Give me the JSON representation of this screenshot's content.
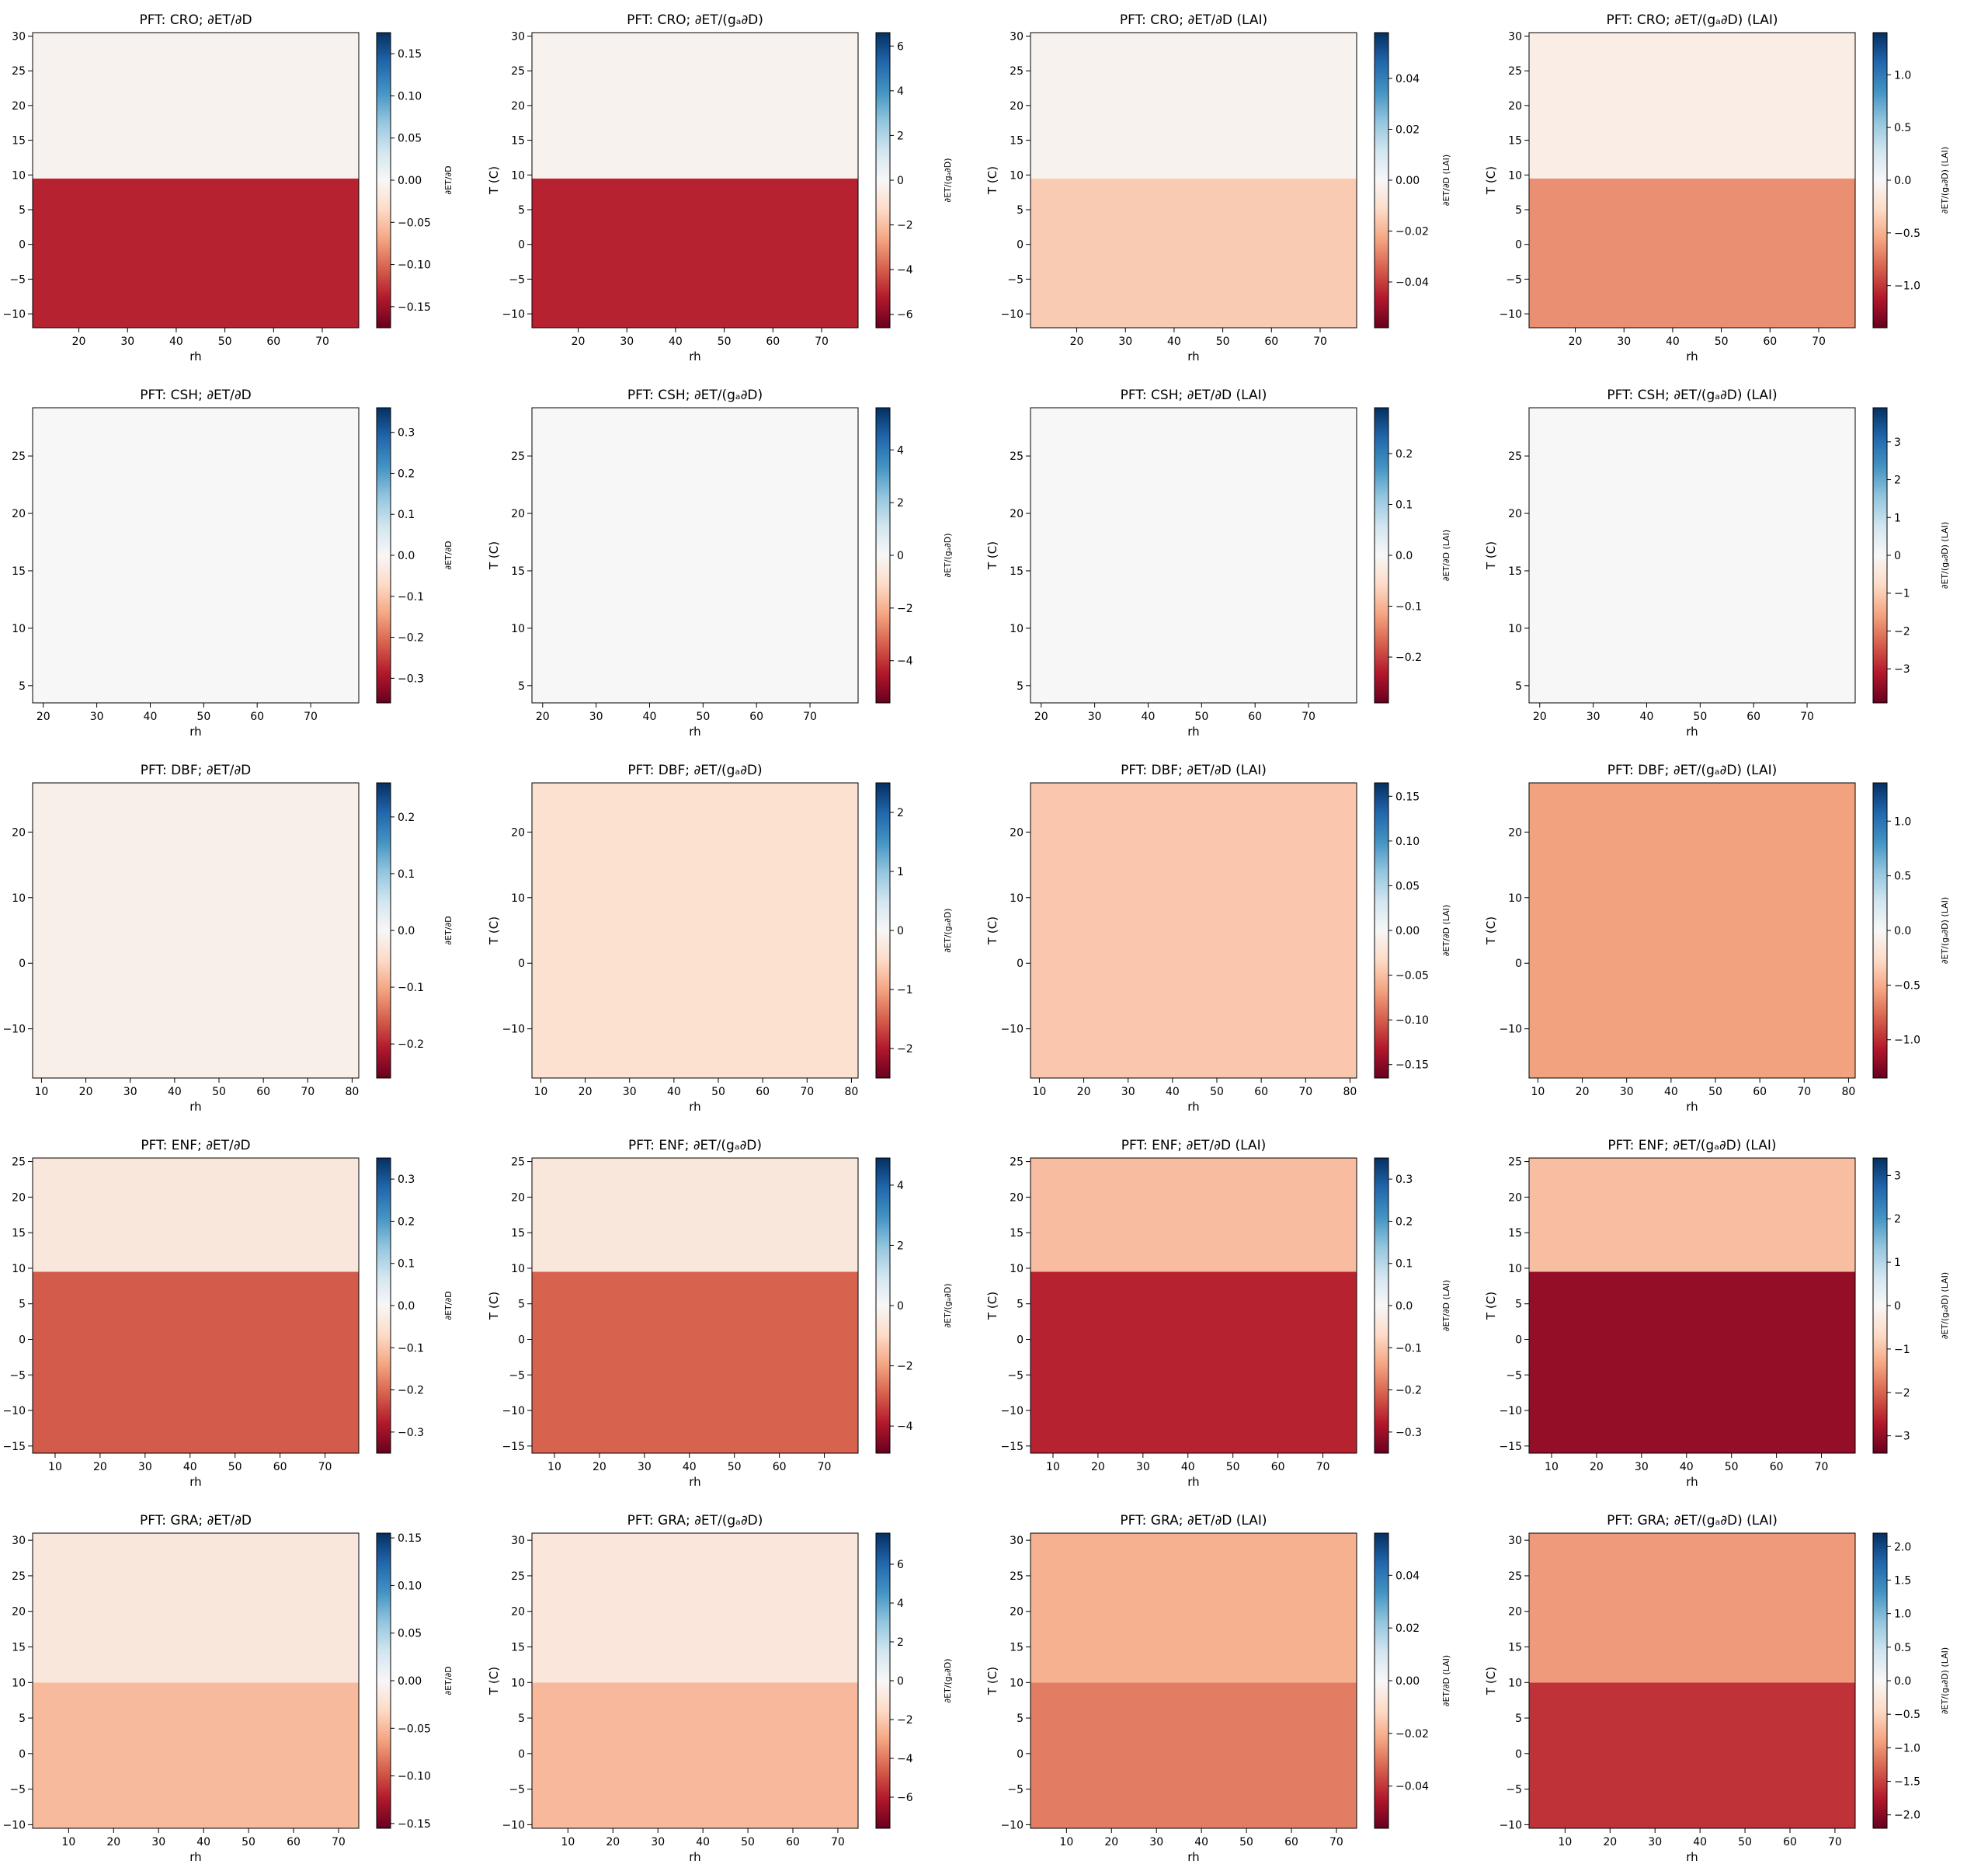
{
  "figure": {
    "xlabel": "rh",
    "ylabel": "T (C)",
    "colormap": [
      "#67001f",
      "#b2182b",
      "#d6604d",
      "#f4a582",
      "#fddbc7",
      "#f7f7f7",
      "#d1e5f0",
      "#92c5de",
      "#4393c3",
      "#2166ac",
      "#053061"
    ],
    "column_titles": [
      "∂ET/∂D",
      "∂ET/(gₐ∂D)",
      "∂ET/∂D (LAI)",
      "∂ET/(gₐ∂D) (LAI)"
    ],
    "colorbar_labels": [
      "∂ET/∂D",
      "∂ET/(gₐ∂D)",
      "∂ET/∂D (LAI)",
      "∂ET/(gₐ∂D) (LAI)"
    ]
  },
  "chart_data": [
    {
      "type": "heatmap",
      "title": "PFT: CRO; ∂ET/∂D",
      "xlabel": "rh",
      "ylabel": "T (C)",
      "xlim": [
        10.5,
        77.5
      ],
      "ylim": [
        -12,
        30.5
      ],
      "xticks": [
        20,
        30,
        40,
        50,
        60,
        70
      ],
      "yticks": [
        -10,
        -5,
        0,
        5,
        10,
        15,
        20,
        25,
        30
      ],
      "colorbar_label": "∂ET/∂D",
      "clim": [
        -0.175,
        0.175
      ],
      "cticks": [
        -0.15,
        -0.1,
        -0.05,
        0.0,
        0.05,
        0.1,
        0.15
      ],
      "cdec": 2,
      "bands": [
        {
          "t_from": -12,
          "t_to": 9.5,
          "value": -0.135
        },
        {
          "t_from": 9.5,
          "t_to": 30.5,
          "value": -0.006
        }
      ]
    },
    {
      "type": "heatmap",
      "title": "PFT: CRO; ∂ET/(gₐ∂D)",
      "xlabel": "rh",
      "ylabel": "T (C)",
      "xlim": [
        10.5,
        77.5
      ],
      "ylim": [
        -12,
        30.5
      ],
      "xticks": [
        20,
        30,
        40,
        50,
        60,
        70
      ],
      "yticks": [
        -10,
        -5,
        0,
        5,
        10,
        15,
        20,
        25,
        30
      ],
      "colorbar_label": "∂ET/(gₐ∂D)",
      "clim": [
        -6.6,
        6.6
      ],
      "cticks": [
        -6,
        -4,
        -2,
        0,
        2,
        4,
        6
      ],
      "cdec": 0,
      "bands": [
        {
          "t_from": -12,
          "t_to": 9.5,
          "value": -5.1
        },
        {
          "t_from": 9.5,
          "t_to": 30.5,
          "value": -0.25
        }
      ]
    },
    {
      "type": "heatmap",
      "title": "PFT: CRO; ∂ET/∂D (LAI)",
      "xlabel": "rh",
      "ylabel": "T (C)",
      "xlim": [
        10.5,
        77.5
      ],
      "ylim": [
        -12,
        30.5
      ],
      "xticks": [
        20,
        30,
        40,
        50,
        60,
        70
      ],
      "yticks": [
        -10,
        -5,
        0,
        5,
        10,
        15,
        20,
        25,
        30
      ],
      "colorbar_label": "∂ET/∂D (LAI)",
      "clim": [
        -0.058,
        0.058
      ],
      "cticks": [
        -0.04,
        -0.02,
        0.0,
        0.02,
        0.04
      ],
      "cdec": 2,
      "bands": [
        {
          "t_from": -12,
          "t_to": 9.5,
          "value": -0.015
        },
        {
          "t_from": 9.5,
          "t_to": 30.5,
          "value": -0.002
        }
      ]
    },
    {
      "type": "heatmap",
      "title": "PFT: CRO; ∂ET/(gₐ∂D) (LAI)",
      "xlabel": "rh",
      "ylabel": "T (C)",
      "xlim": [
        10.5,
        77.5
      ],
      "ylim": [
        -12,
        30.5
      ],
      "xticks": [
        20,
        30,
        40,
        50,
        60,
        70
      ],
      "yticks": [
        -10,
        -5,
        0,
        5,
        10,
        15,
        20,
        25,
        30
      ],
      "colorbar_label": "∂ET/(gₐ∂D) (LAI)",
      "clim": [
        -1.4,
        1.4
      ],
      "cticks": [
        -1.0,
        -0.5,
        0.0,
        0.5,
        1.0
      ],
      "cdec": 1,
      "bands": [
        {
          "t_from": -12,
          "t_to": 9.5,
          "value": -0.65
        },
        {
          "t_from": 9.5,
          "t_to": 30.5,
          "value": -0.1
        }
      ]
    },
    {
      "type": "heatmap",
      "title": "PFT: CSH; ∂ET/∂D",
      "xlabel": "rh",
      "ylabel": "T (C)",
      "xlim": [
        18,
        79
      ],
      "ylim": [
        3.5,
        29.2
      ],
      "xticks": [
        20,
        30,
        40,
        50,
        60,
        70
      ],
      "yticks": [
        5,
        10,
        15,
        20,
        25
      ],
      "colorbar_label": "∂ET/∂D",
      "clim": [
        -0.36,
        0.36
      ],
      "cticks": [
        -0.3,
        -0.2,
        -0.1,
        0.0,
        0.1,
        0.2,
        0.3
      ],
      "cdec": 1,
      "bands": [
        {
          "t_from": 3.5,
          "t_to": 29.2,
          "value": 0
        }
      ]
    },
    {
      "type": "heatmap",
      "title": "PFT: CSH; ∂ET/(gₐ∂D)",
      "xlabel": "rh",
      "ylabel": "T (C)",
      "xlim": [
        18,
        79
      ],
      "ylim": [
        3.5,
        29.2
      ],
      "xticks": [
        20,
        30,
        40,
        50,
        60,
        70
      ],
      "yticks": [
        5,
        10,
        15,
        20,
        25
      ],
      "colorbar_label": "∂ET/(gₐ∂D)",
      "clim": [
        -5.6,
        5.6
      ],
      "cticks": [
        -4,
        -2,
        0,
        2,
        4
      ],
      "cdec": 0,
      "bands": [
        {
          "t_from": 3.5,
          "t_to": 29.2,
          "value": 0
        }
      ]
    },
    {
      "type": "heatmap",
      "title": "PFT: CSH; ∂ET/∂D (LAI)",
      "xlabel": "rh",
      "ylabel": "T (C)",
      "xlim": [
        18,
        79
      ],
      "ylim": [
        3.5,
        29.2
      ],
      "xticks": [
        20,
        30,
        40,
        50,
        60,
        70
      ],
      "yticks": [
        5,
        10,
        15,
        20,
        25
      ],
      "colorbar_label": "∂ET/∂D (LAI)",
      "clim": [
        -0.29,
        0.29
      ],
      "cticks": [
        -0.2,
        -0.1,
        0.0,
        0.1,
        0.2
      ],
      "cdec": 1,
      "bands": [
        {
          "t_from": 3.5,
          "t_to": 29.2,
          "value": 0
        }
      ]
    },
    {
      "type": "heatmap",
      "title": "PFT: CSH; ∂ET/(gₐ∂D) (LAI)",
      "xlabel": "rh",
      "ylabel": "T (C)",
      "xlim": [
        18,
        79
      ],
      "ylim": [
        3.5,
        29.2
      ],
      "xticks": [
        20,
        30,
        40,
        50,
        60,
        70
      ],
      "yticks": [
        5,
        10,
        15,
        20,
        25
      ],
      "colorbar_label": "∂ET/(gₐ∂D) (LAI)",
      "clim": [
        -3.9,
        3.9
      ],
      "cticks": [
        -3,
        -2,
        -1,
        0,
        1,
        2,
        3
      ],
      "cdec": 0,
      "bands": [
        {
          "t_from": 3.5,
          "t_to": 29.2,
          "value": 0
        }
      ]
    },
    {
      "type": "heatmap",
      "title": "PFT: DBF; ∂ET/∂D",
      "xlabel": "rh",
      "ylabel": "T (C)",
      "xlim": [
        8,
        81.5
      ],
      "ylim": [
        -17.5,
        27.5
      ],
      "xticks": [
        10,
        20,
        30,
        40,
        50,
        60,
        70,
        80
      ],
      "yticks": [
        -10,
        0,
        10,
        20
      ],
      "colorbar_label": "∂ET/∂D",
      "clim": [
        -0.26,
        0.26
      ],
      "cticks": [
        -0.2,
        -0.1,
        0.0,
        0.1,
        0.2
      ],
      "cdec": 1,
      "bands": [
        {
          "t_from": -17.5,
          "t_to": 27.5,
          "value": -0.015
        }
      ]
    },
    {
      "type": "heatmap",
      "title": "PFT: DBF; ∂ET/(gₐ∂D)",
      "xlabel": "rh",
      "ylabel": "T (C)",
      "xlim": [
        8,
        81.5
      ],
      "ylim": [
        -17.5,
        27.5
      ],
      "xticks": [
        10,
        20,
        30,
        40,
        50,
        60,
        70,
        80
      ],
      "yticks": [
        -10,
        0,
        10,
        20
      ],
      "colorbar_label": "∂ET/(gₐ∂D)",
      "clim": [
        -2.5,
        2.5
      ],
      "cticks": [
        -2,
        -1,
        0,
        1,
        2
      ],
      "cdec": 0,
      "bands": [
        {
          "t_from": -17.5,
          "t_to": 27.5,
          "value": -0.4
        }
      ]
    },
    {
      "type": "heatmap",
      "title": "PFT: DBF; ∂ET/∂D (LAI)",
      "xlabel": "rh",
      "ylabel": "T (C)",
      "xlim": [
        8,
        81.5
      ],
      "ylim": [
        -17.5,
        27.5
      ],
      "xticks": [
        10,
        20,
        30,
        40,
        50,
        60,
        70,
        80
      ],
      "yticks": [
        -10,
        0,
        10,
        20
      ],
      "colorbar_label": "∂ET/∂D (LAI)",
      "clim": [
        -0.165,
        0.165
      ],
      "cticks": [
        -0.15,
        -0.1,
        -0.05,
        0.0,
        0.05,
        0.1,
        0.15
      ],
      "cdec": 2,
      "bands": [
        {
          "t_from": -17.5,
          "t_to": 27.5,
          "value": -0.045
        }
      ]
    },
    {
      "type": "heatmap",
      "title": "PFT: DBF; ∂ET/(gₐ∂D) (LAI)",
      "xlabel": "rh",
      "ylabel": "T (C)",
      "xlim": [
        8,
        81.5
      ],
      "ylim": [
        -17.5,
        27.5
      ],
      "xticks": [
        10,
        20,
        30,
        40,
        50,
        60,
        70,
        80
      ],
      "yticks": [
        -10,
        0,
        10,
        20
      ],
      "colorbar_label": "∂ET/(gₐ∂D) (LAI)",
      "clim": [
        -1.35,
        1.35
      ],
      "cticks": [
        -1.0,
        -0.5,
        0.0,
        0.5,
        1.0
      ],
      "cdec": 1,
      "bands": [
        {
          "t_from": -17.5,
          "t_to": 27.5,
          "value": -0.55
        }
      ]
    },
    {
      "type": "heatmap",
      "title": "PFT: ENF; ∂ET/∂D",
      "xlabel": "rh",
      "ylabel": "T (C)",
      "xlim": [
        5,
        77.5
      ],
      "ylim": [
        -16,
        25.5
      ],
      "xticks": [
        10,
        20,
        30,
        40,
        50,
        60,
        70
      ],
      "yticks": [
        -15,
        -10,
        -5,
        0,
        5,
        10,
        15,
        20,
        25
      ],
      "colorbar_label": "∂ET/∂D",
      "clim": [
        -0.35,
        0.35
      ],
      "cticks": [
        -0.3,
        -0.2,
        -0.1,
        0.0,
        0.1,
        0.2,
        0.3
      ],
      "cdec": 1,
      "bands": [
        {
          "t_from": -16,
          "t_to": 9.5,
          "value": -0.215
        },
        {
          "t_from": 9.5,
          "t_to": 25.5,
          "value": -0.04
        }
      ]
    },
    {
      "type": "heatmap",
      "title": "PFT: ENF; ∂ET/(gₐ∂D)",
      "xlabel": "rh",
      "ylabel": "T (C)",
      "xlim": [
        5,
        77.5
      ],
      "ylim": [
        -16,
        25.5
      ],
      "xticks": [
        10,
        20,
        30,
        40,
        50,
        60,
        70
      ],
      "yticks": [
        -15,
        -10,
        -5,
        0,
        5,
        10,
        15,
        20,
        25
      ],
      "colorbar_label": "∂ET/(gₐ∂D)",
      "clim": [
        -4.9,
        4.9
      ],
      "cticks": [
        -4,
        -2,
        0,
        2,
        4
      ],
      "cdec": 0,
      "bands": [
        {
          "t_from": -16,
          "t_to": 9.5,
          "value": -2.9
        },
        {
          "t_from": 9.5,
          "t_to": 25.5,
          "value": -0.55
        }
      ]
    },
    {
      "type": "heatmap",
      "title": "PFT: ENF; ∂ET/∂D (LAI)",
      "xlabel": "rh",
      "ylabel": "T (C)",
      "xlim": [
        5,
        77.5
      ],
      "ylim": [
        -16,
        25.5
      ],
      "xticks": [
        10,
        20,
        30,
        40,
        50,
        60,
        70
      ],
      "yticks": [
        -15,
        -10,
        -5,
        0,
        5,
        10,
        15,
        20,
        25
      ],
      "colorbar_label": "∂ET/∂D (LAI)",
      "clim": [
        -0.35,
        0.35
      ],
      "cticks": [
        -0.3,
        -0.2,
        -0.1,
        0.0,
        0.1,
        0.2,
        0.3
      ],
      "cdec": 1,
      "bands": [
        {
          "t_from": -16,
          "t_to": 9.5,
          "value": -0.27
        },
        {
          "t_from": 9.5,
          "t_to": 25.5,
          "value": -0.11
        }
      ]
    },
    {
      "type": "heatmap",
      "title": "PFT: ENF; ∂ET/(gₐ∂D) (LAI)",
      "xlabel": "rh",
      "ylabel": "T (C)",
      "xlim": [
        5,
        77.5
      ],
      "ylim": [
        -16,
        25.5
      ],
      "xticks": [
        10,
        20,
        30,
        40,
        50,
        60,
        70
      ],
      "yticks": [
        -15,
        -10,
        -5,
        0,
        5,
        10,
        15,
        20,
        25
      ],
      "colorbar_label": "∂ET/(gₐ∂D) (LAI)",
      "clim": [
        -3.4,
        3.4
      ],
      "cticks": [
        -3,
        -2,
        -1,
        0,
        1,
        2,
        3
      ],
      "cdec": 0,
      "bands": [
        {
          "t_from": -16,
          "t_to": 9.5,
          "value": -3.0
        },
        {
          "t_from": 9.5,
          "t_to": 25.5,
          "value": -1.05
        }
      ]
    },
    {
      "type": "heatmap",
      "title": "PFT: GRA; ∂ET/∂D",
      "xlabel": "rh",
      "ylabel": "T (C)",
      "xlim": [
        2,
        74.5
      ],
      "ylim": [
        -10.5,
        31
      ],
      "xticks": [
        10,
        20,
        30,
        40,
        50,
        60,
        70
      ],
      "yticks": [
        -10,
        -5,
        0,
        5,
        10,
        15,
        20,
        25,
        30
      ],
      "colorbar_label": "∂ET/∂D",
      "clim": [
        -0.155,
        0.155
      ],
      "cticks": [
        -0.15,
        -0.1,
        -0.05,
        0.0,
        0.05,
        0.1,
        0.15
      ],
      "cdec": 2,
      "bands": [
        {
          "t_from": -10.5,
          "t_to": 10,
          "value": -0.05
        },
        {
          "t_from": 10,
          "t_to": 31,
          "value": -0.018
        }
      ]
    },
    {
      "type": "heatmap",
      "title": "PFT: GRA; ∂ET/(gₐ∂D)",
      "xlabel": "rh",
      "ylabel": "T (C)",
      "xlim": [
        2,
        74.5
      ],
      "ylim": [
        -10.5,
        31
      ],
      "xticks": [
        10,
        20,
        30,
        40,
        50,
        60,
        70
      ],
      "yticks": [
        -10,
        -5,
        0,
        5,
        10,
        15,
        20,
        25,
        30
      ],
      "colorbar_label": "∂ET/(gₐ∂D)",
      "clim": [
        -7.6,
        7.6
      ],
      "cticks": [
        -6,
        -4,
        -2,
        0,
        2,
        4,
        6
      ],
      "cdec": 0,
      "bands": [
        {
          "t_from": -10.5,
          "t_to": 10,
          "value": -2.5
        },
        {
          "t_from": 10,
          "t_to": 31,
          "value": -0.9
        }
      ]
    },
    {
      "type": "heatmap",
      "title": "PFT: GRA; ∂ET/∂D (LAI)",
      "xlabel": "rh",
      "ylabel": "T (C)",
      "xlim": [
        2,
        74.5
      ],
      "ylim": [
        -10.5,
        31
      ],
      "xticks": [
        10,
        20,
        30,
        40,
        50,
        60,
        70
      ],
      "yticks": [
        -10,
        -5,
        0,
        5,
        10,
        15,
        20,
        25,
        30
      ],
      "colorbar_label": "∂ET/∂D (LAI)",
      "clim": [
        -0.056,
        0.056
      ],
      "cticks": [
        -0.04,
        -0.02,
        0.0,
        0.02,
        0.04
      ],
      "cdec": 2,
      "bands": [
        {
          "t_from": -10.5,
          "t_to": 10,
          "value": -0.029
        },
        {
          "t_from": 10,
          "t_to": 31,
          "value": -0.02
        }
      ]
    },
    {
      "type": "heatmap",
      "title": "PFT: GRA; ∂ET/(gₐ∂D) (LAI)",
      "xlabel": "rh",
      "ylabel": "T (C)",
      "xlim": [
        2,
        74.5
      ],
      "ylim": [
        -10.5,
        31
      ],
      "xticks": [
        10,
        20,
        30,
        40,
        50,
        60,
        70
      ],
      "yticks": [
        -10,
        -5,
        0,
        5,
        10,
        15,
        20,
        25,
        30
      ],
      "colorbar_label": "∂ET/(gₐ∂D) (LAI)",
      "clim": [
        -2.2,
        2.2
      ],
      "cticks": [
        -2.0,
        -1.5,
        -1.0,
        -0.5,
        0.0,
        0.5,
        1.0,
        1.5,
        2.0
      ],
      "cdec": 1,
      "bands": [
        {
          "t_from": -10.5,
          "t_to": 10,
          "value": -1.6
        },
        {
          "t_from": 10,
          "t_to": 31,
          "value": -0.95
        }
      ]
    }
  ]
}
